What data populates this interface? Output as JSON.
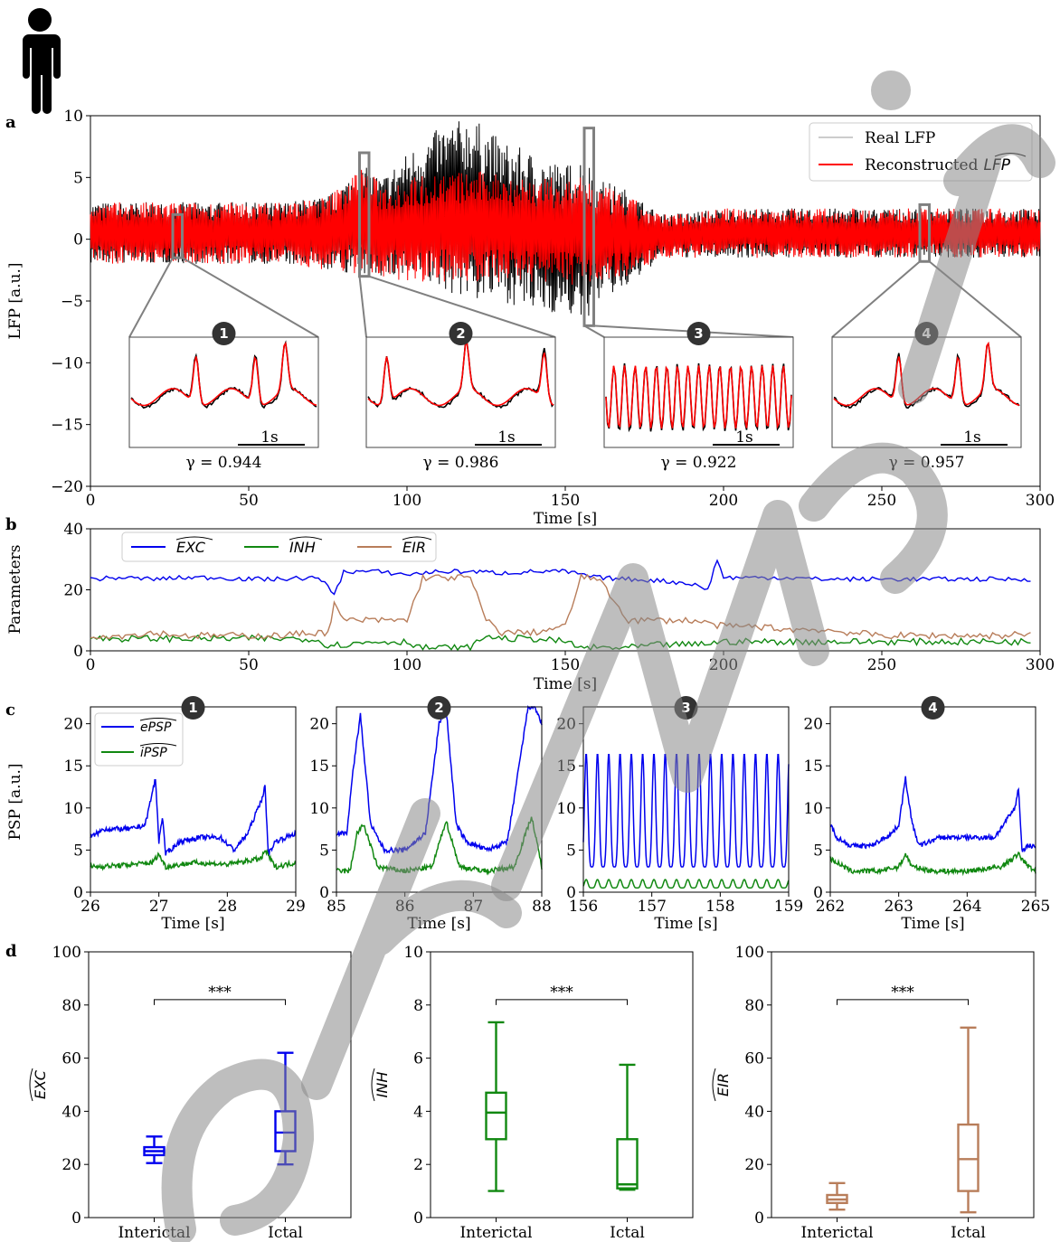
{
  "panel_labels": [
    "a",
    "b",
    "c",
    "d"
  ],
  "colors": {
    "real": "#000000",
    "reconstructed": "#ff0000",
    "exc": "#0000ee",
    "inh": "#118811",
    "eir": "#b87d5a",
    "zoom_box": "#808080",
    "badge": "#333333"
  },
  "human_icon": "person-silhouette-icon",
  "chart_data": [
    {
      "id": "a",
      "type": "line",
      "ylabel": "LFP [a.u.]",
      "xlabel": "Time [s]",
      "xlim": [
        0,
        300
      ],
      "ylim": [
        -20,
        10
      ],
      "xticks": [
        "0",
        "50",
        "100",
        "150",
        "200",
        "250",
        "300"
      ],
      "yticks": [
        "10",
        "5",
        "0",
        "−5",
        "−10",
        "−15",
        "−20"
      ],
      "legend": {
        "position": "top-right",
        "entries": [
          "Real LFP",
          "Reconstructed"
        ],
        "italic_suffix": "LFP"
      },
      "series": [
        {
          "name": "Real LFP",
          "color": "#000000",
          "envelope": {
            "x": [
              0,
              30,
              60,
              75,
              86,
              92,
              100,
              110,
              120,
              130,
              140,
              150,
              156,
              160,
              170,
              180,
              200,
              230,
              260,
              290,
              300
            ],
            "upper": [
              3,
              3,
              3,
              3.5,
              6,
              5,
              7,
              9,
              10,
              8,
              7,
              6,
              7,
              5,
              4,
              2,
              2.5,
              2.5,
              2.5,
              2.5,
              2.5
            ],
            "lower": [
              -2,
              -2,
              -2,
              -2.5,
              -3,
              -3,
              -3.5,
              -4,
              -5,
              -5,
              -6,
              -6,
              -7,
              -5,
              -4,
              -1.5,
              -1.5,
              -1.5,
              -1.5,
              -1.5,
              -1.5
            ]
          }
        },
        {
          "name": "Reconstructed",
          "color": "#ff0000",
          "envelope": {
            "x": [
              0,
              30,
              60,
              75,
              86,
              92,
              100,
              110,
              120,
              130,
              140,
              150,
              156,
              160,
              170,
              180,
              200,
              230,
              260,
              290,
              300
            ],
            "upper": [
              3,
              3,
              3,
              3.5,
              6,
              4.5,
              5,
              5.5,
              5.5,
              5.5,
              5,
              5,
              5,
              4.5,
              3.5,
              2,
              2.5,
              2.5,
              2.5,
              2.5,
              2.5
            ],
            "lower": [
              -2,
              -2,
              -2,
              -2.5,
              -3,
              -3,
              -3.5,
              -3.5,
              -3.5,
              -3.5,
              -3.5,
              -3.5,
              -4,
              -3.5,
              -3,
              -1.5,
              -1.5,
              -1.5,
              -1.5,
              -1.5,
              -1.5
            ]
          }
        }
      ],
      "zoom_boxes": [
        {
          "label": "1",
          "x": [
            26,
            29
          ],
          "y": [
            -1.5,
            2
          ],
          "gamma": "γ = 0.944",
          "scalebar": "1s"
        },
        {
          "label": "2",
          "x": [
            85,
            88
          ],
          "y": [
            -3,
            7
          ],
          "gamma": "γ = 0.986",
          "scalebar": "1s"
        },
        {
          "label": "3",
          "x": [
            156,
            159
          ],
          "y": [
            -7,
            9
          ],
          "gamma": "γ = 0.922",
          "scalebar": "1s"
        },
        {
          "label": "4",
          "x": [
            262,
            265
          ],
          "y": [
            -1.8,
            2.8
          ],
          "gamma": "γ = 0.957",
          "scalebar": "1s"
        }
      ]
    },
    {
      "id": "b",
      "type": "line",
      "ylabel": "Parameters",
      "xlabel": "Time [s]",
      "xlim": [
        0,
        300
      ],
      "ylim": [
        0,
        40
      ],
      "xticks": [
        "0",
        "50",
        "100",
        "150",
        "200",
        "250",
        "300"
      ],
      "yticks": [
        "40",
        "20",
        "0"
      ],
      "legend": {
        "position": "top-left"
      },
      "series": [
        {
          "name": "EXC",
          "color": "#0000ee",
          "x": [
            0,
            10,
            20,
            30,
            40,
            50,
            60,
            70,
            75,
            77,
            80,
            90,
            100,
            110,
            120,
            130,
            140,
            150,
            160,
            170,
            180,
            190,
            195,
            198,
            200,
            210,
            220,
            230,
            240,
            250,
            260,
            270,
            280,
            290,
            297
          ],
          "y": [
            23.5,
            24,
            23.5,
            24,
            24,
            23.5,
            23.5,
            24,
            22,
            18,
            26,
            26,
            25,
            26,
            26,
            25.5,
            26,
            26,
            24,
            23.5,
            23,
            22,
            20,
            30,
            24,
            24,
            24,
            23.5,
            23.5,
            23.5,
            23.5,
            23.5,
            23.5,
            23.5,
            23.5
          ]
        },
        {
          "name": "INH",
          "color": "#118811",
          "x": [
            0,
            10,
            20,
            30,
            40,
            50,
            60,
            70,
            75,
            80,
            90,
            100,
            105,
            110,
            120,
            125,
            130,
            140,
            150,
            155,
            160,
            170,
            180,
            190,
            200,
            210,
            220,
            230,
            240,
            250,
            260,
            270,
            280,
            290,
            297
          ],
          "y": [
            4,
            4,
            4,
            4,
            4,
            4,
            4,
            4,
            2,
            2,
            3,
            3,
            1,
            1,
            1,
            5,
            4,
            4,
            3,
            1,
            1,
            1,
            2,
            2,
            3,
            3,
            3,
            3,
            3,
            3,
            3,
            3,
            3,
            3,
            3
          ]
        },
        {
          "name": "EIR",
          "color": "#b87d5a",
          "x": [
            0,
            10,
            20,
            30,
            40,
            50,
            60,
            70,
            75,
            77,
            80,
            90,
            100,
            105,
            110,
            120,
            125,
            130,
            140,
            150,
            155,
            160,
            170,
            180,
            190,
            200,
            210,
            220,
            230,
            240,
            250,
            260,
            270,
            280,
            290,
            297
          ],
          "y": [
            5,
            5,
            6,
            5,
            5,
            5,
            5,
            6,
            6,
            15,
            10,
            10,
            10,
            24,
            24,
            24,
            10,
            6,
            6,
            8,
            24,
            24,
            10,
            10,
            10,
            8,
            8,
            7,
            7,
            6,
            5,
            5,
            5,
            5,
            5,
            6
          ]
        }
      ]
    },
    {
      "id": "c1",
      "type": "line",
      "badge": "1",
      "ylabel": "PSP [a.u.]",
      "xlabel": "Time [s]",
      "xlim": [
        26,
        29
      ],
      "ylim": [
        0,
        22
      ],
      "xticks": [
        "26",
        "27",
        "28",
        "29"
      ],
      "yticks": [
        "20",
        "15",
        "10",
        "5",
        "0"
      ],
      "legend": {
        "position": "top-left",
        "entries": [
          "ePSP",
          "iPSP"
        ]
      },
      "series": [
        {
          "name": "ePSP",
          "color": "#0000ee",
          "x": [
            26,
            26.2,
            26.4,
            26.6,
            26.8,
            26.95,
            27.0,
            27.05,
            27.1,
            27.3,
            27.6,
            27.9,
            28.1,
            28.3,
            28.5,
            28.55,
            28.6,
            28.7,
            29
          ],
          "y": [
            6.5,
            7.5,
            7.5,
            7.5,
            8,
            13.5,
            6,
            9,
            4.5,
            6,
            6.5,
            6.5,
            5,
            7,
            11,
            12.5,
            4.5,
            6,
            7
          ]
        },
        {
          "name": "iPSP",
          "color": "#118811",
          "x": [
            26,
            26.5,
            26.9,
            27.0,
            27.1,
            27.5,
            28.0,
            28.5,
            28.55,
            28.7,
            29
          ],
          "y": [
            3,
            3.2,
            3.5,
            4.5,
            3,
            3.5,
            3.3,
            4,
            5,
            3,
            3.5
          ]
        }
      ]
    },
    {
      "id": "c2",
      "type": "line",
      "badge": "2",
      "xlabel": "Time [s]",
      "xlim": [
        85,
        88
      ],
      "ylim": [
        0,
        22
      ],
      "xticks": [
        "85",
        "86",
        "87",
        "88"
      ],
      "yticks": [
        "20",
        "15",
        "10",
        "5",
        "0"
      ],
      "series": [
        {
          "name": "ePSP",
          "color": "#0000ee",
          "x": [
            85,
            85.15,
            85.25,
            85.35,
            85.5,
            85.7,
            86.0,
            86.3,
            86.5,
            86.6,
            86.75,
            86.9,
            87.2,
            87.5,
            87.8,
            87.9,
            88
          ],
          "y": [
            7,
            7,
            15,
            21,
            8,
            5,
            5,
            7,
            20,
            22,
            8,
            6,
            5,
            6,
            22,
            22,
            20
          ]
        },
        {
          "name": "iPSP",
          "color": "#118811",
          "x": [
            85,
            85.2,
            85.3,
            85.4,
            85.6,
            86.0,
            86.4,
            86.6,
            86.8,
            87.2,
            87.6,
            87.85,
            88
          ],
          "y": [
            2.5,
            2.5,
            7,
            8,
            3,
            2.5,
            3,
            8.5,
            3,
            2.5,
            3,
            9,
            3
          ]
        }
      ]
    },
    {
      "id": "c3",
      "type": "line",
      "badge": "3",
      "xlabel": "Time [s]",
      "xlim": [
        156,
        159
      ],
      "ylim": [
        0,
        22
      ],
      "xticks": [
        "156",
        "157",
        "158",
        "159"
      ],
      "yticks": [
        "20",
        "15",
        "10",
        "5",
        "0"
      ],
      "series": [
        {
          "name": "ePSP",
          "color": "#0000ee",
          "oscillation": {
            "period": 0.165,
            "min": 3,
            "max": 16.5
          }
        },
        {
          "name": "iPSP",
          "color": "#118811",
          "oscillation": {
            "period": 0.165,
            "min": 0.5,
            "max": 1.5
          }
        }
      ]
    },
    {
      "id": "c4",
      "type": "line",
      "badge": "4",
      "xlabel": "Time [s]",
      "xlim": [
        262,
        265
      ],
      "ylim": [
        0,
        22
      ],
      "xticks": [
        "262",
        "263",
        "264",
        "265"
      ],
      "yticks": [
        "20",
        "15",
        "10",
        "5",
        "0"
      ],
      "series": [
        {
          "name": "ePSP",
          "color": "#0000ee",
          "x": [
            262,
            262.1,
            262.3,
            262.6,
            262.9,
            263.0,
            263.1,
            263.2,
            263.3,
            263.6,
            264.0,
            264.4,
            264.7,
            264.75,
            264.8,
            264.9,
            265
          ],
          "y": [
            8,
            6.5,
            5.5,
            5.5,
            7,
            8,
            13.5,
            8,
            5.5,
            6.5,
            6.5,
            6.5,
            10,
            12.5,
            5,
            5.5,
            5.5
          ]
        },
        {
          "name": "iPSP",
          "color": "#118811",
          "x": [
            262,
            262.3,
            262.7,
            263.0,
            263.1,
            263.2,
            263.5,
            264.0,
            264.5,
            264.75,
            264.9,
            265
          ],
          "y": [
            4,
            2.5,
            2.5,
            3,
            4.5,
            3,
            2.5,
            2.5,
            3,
            4.5,
            3,
            2.5
          ]
        }
      ]
    },
    {
      "id": "d1",
      "type": "box",
      "ylabel": "EXC",
      "ylim": [
        0,
        100
      ],
      "yticks": [
        "100",
        "80",
        "60",
        "40",
        "20",
        "0"
      ],
      "color": "#0000ee",
      "categories": [
        "Interictal",
        "Ictal"
      ],
      "significance": "***",
      "boxes": [
        {
          "min": 20.5,
          "q1": 23.5,
          "median": 25,
          "q3": 26.5,
          "max": 30.5
        },
        {
          "min": 20,
          "q1": 25,
          "median": 32,
          "q3": 40,
          "max": 62
        }
      ]
    },
    {
      "id": "d2",
      "type": "box",
      "ylabel": "INH",
      "ylim": [
        0,
        10
      ],
      "yticks": [
        "10",
        "8",
        "6",
        "4",
        "2",
        "0"
      ],
      "color": "#118811",
      "categories": [
        "Interictal",
        "Ictal"
      ],
      "significance": "***",
      "boxes": [
        {
          "min": 1,
          "q1": 2.95,
          "median": 3.95,
          "q3": 4.7,
          "max": 7.35
        },
        {
          "min": 1.05,
          "q1": 1.1,
          "median": 1.25,
          "q3": 2.95,
          "max": 5.75
        }
      ]
    },
    {
      "id": "d3",
      "type": "box",
      "ylabel": "EIR",
      "ylim": [
        0,
        100
      ],
      "yticks": [
        "100",
        "80",
        "60",
        "40",
        "20",
        "0"
      ],
      "color": "#b87d5a",
      "categories": [
        "Interictal",
        "Ictal"
      ],
      "significance": "***",
      "boxes": [
        {
          "min": 3,
          "q1": 5.5,
          "median": 6.8,
          "q3": 8.5,
          "max": 13
        },
        {
          "min": 2,
          "q1": 10,
          "median": 22,
          "q3": 35,
          "max": 71.5
        }
      ]
    }
  ]
}
